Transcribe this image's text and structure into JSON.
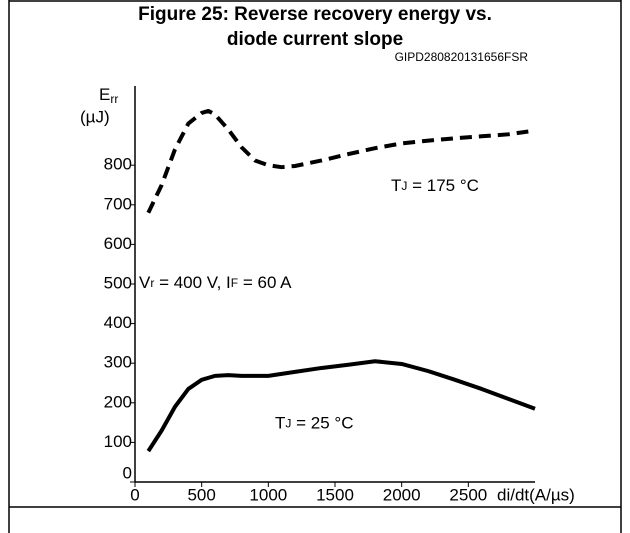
{
  "chart_data": {
    "type": "line",
    "title": "Figure 25: Reverse recovery energy vs.",
    "subtitle": "diode current slope",
    "figure_code": "GIPD280820131656FSR",
    "y_label_parts": [
      "E",
      "rr"
    ],
    "y_unit": "(µJ)",
    "x_label": "di/dt(A/µs)",
    "xlim": [
      0,
      3000
    ],
    "ylim": [
      0,
      1000
    ],
    "xticks": [
      0,
      500,
      1000,
      1500,
      2000,
      2500
    ],
    "yticks": [
      0,
      100,
      200,
      300,
      400,
      500,
      600,
      700,
      800
    ],
    "annotations": [
      {
        "parts": [
          "V",
          "r",
          " = 400 V, I",
          "F",
          " = 60 A"
        ],
        "x": 30,
        "y": 500
      },
      {
        "parts": [
          "T",
          "J",
          " = 175 °C"
        ],
        "x": 1920,
        "y": 745
      },
      {
        "parts": [
          "T",
          "J",
          " = 25 °C"
        ],
        "x": 1050,
        "y": 145
      }
    ],
    "series": [
      {
        "color": "#000000",
        "dashed": true,
        "x": [
          100,
          200,
          300,
          400,
          500,
          550,
          600,
          700,
          800,
          900,
          1000,
          1100,
          1200,
          1400,
          1600,
          1800,
          2000,
          2200,
          2400,
          2600,
          2800,
          2950
        ],
        "values": [
          680,
          750,
          840,
          905,
          932,
          937,
          928,
          890,
          845,
          812,
          800,
          795,
          798,
          812,
          828,
          843,
          855,
          862,
          868,
          873,
          878,
          885
        ]
      },
      {
        "color": "#000000",
        "dashed": false,
        "x": [
          100,
          200,
          300,
          400,
          500,
          600,
          700,
          800,
          1000,
          1200,
          1400,
          1600,
          1800,
          2000,
          2200,
          2400,
          2600,
          2800,
          3000
        ],
        "values": [
          78,
          130,
          190,
          235,
          258,
          268,
          270,
          268,
          268,
          278,
          288,
          296,
          305,
          298,
          280,
          258,
          235,
          210,
          185
        ]
      }
    ]
  }
}
